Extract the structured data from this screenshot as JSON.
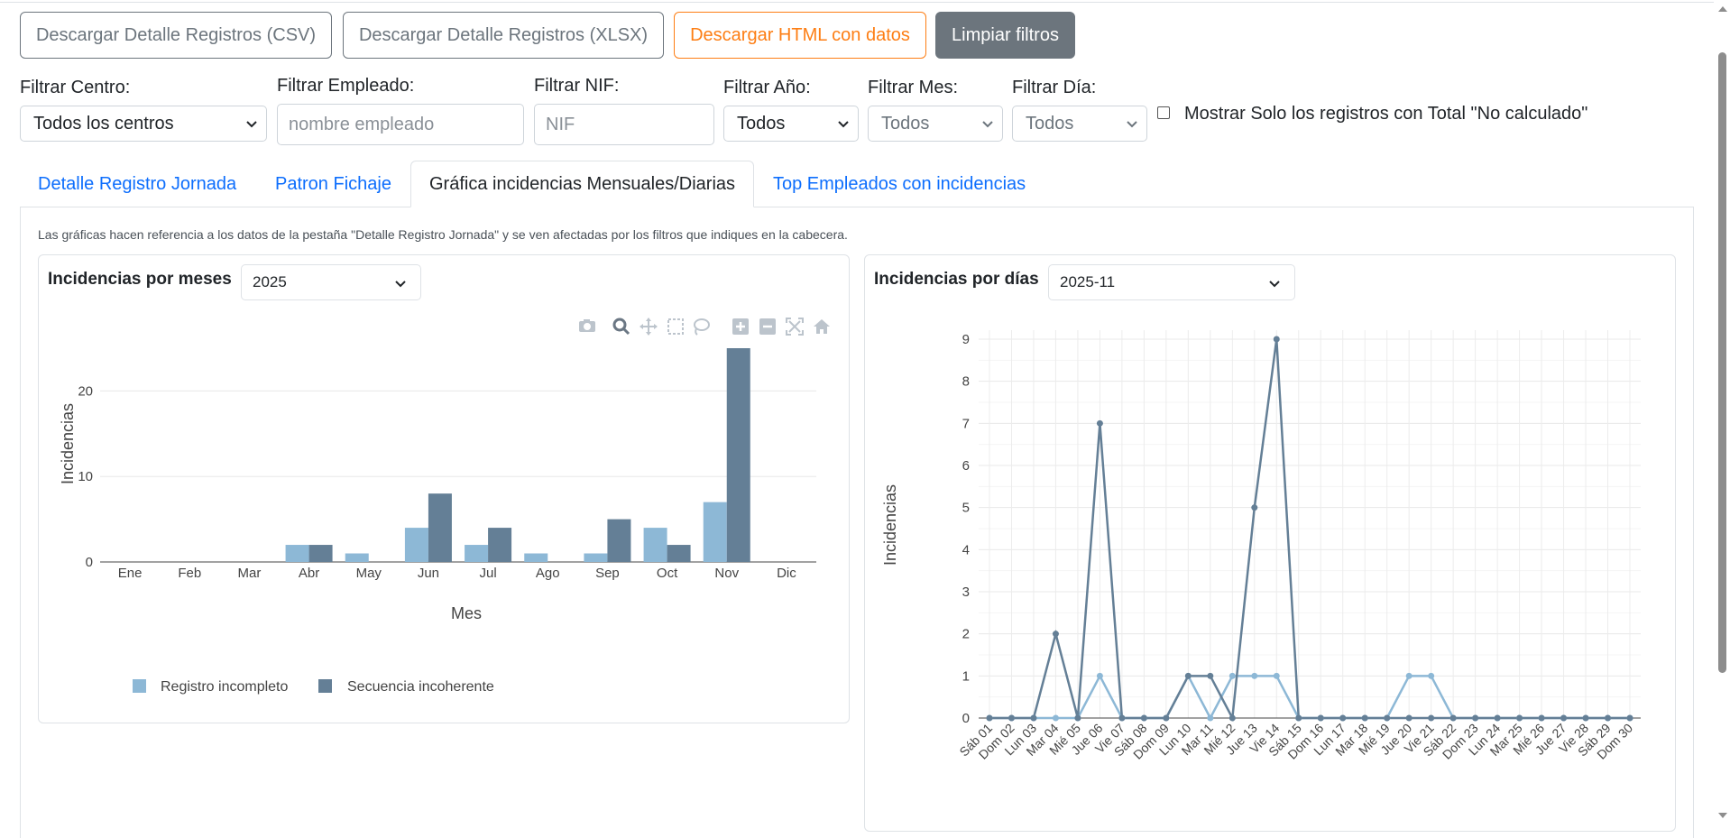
{
  "buttons": {
    "csv": "Descargar Detalle Registros (CSV)",
    "xlsx": "Descargar Detalle Registros (XLSX)",
    "html": "Descargar HTML con datos",
    "clear": "Limpiar filtros"
  },
  "filters": {
    "centro_label": "Filtrar Centro:",
    "centro_value": "Todos los centros",
    "empleado_label": "Filtrar Empleado:",
    "empleado_placeholder": "nombre empleado",
    "nif_label": "Filtrar NIF:",
    "nif_placeholder": "NIF",
    "anio_label": "Filtrar Año:",
    "anio_value": "Todos",
    "mes_label": "Filtrar Mes:",
    "mes_value": "Todos",
    "dia_label": "Filtrar Día:",
    "dia_value": "Todos",
    "checkbox_label": "Mostrar Solo los registros con Total \"No calculado\""
  },
  "tabs": [
    {
      "label": "Detalle Registro Jornada"
    },
    {
      "label": "Patron Fichaje"
    },
    {
      "label": "Gráfica incidencias Mensuales/Diarias"
    },
    {
      "label": "Top Empleados con incidencias"
    }
  ],
  "note": "Las gráficas hacen referencia a los datos de la pestaña \"Detalle Registro Jornada\" y se ven afectadas por los filtros que indiques en la cabecera.",
  "monthly_card": {
    "title": "Incidencias por meses",
    "selected": "2025"
  },
  "daily_card": {
    "title": "Incidencias por días",
    "selected": "2025-11"
  },
  "colors": {
    "registro": "#8db8d6",
    "secuencia": "#647f96"
  },
  "chart_data": [
    {
      "type": "bar",
      "xlabel": "Mes",
      "ylabel": "Incidencias",
      "ylim": [
        0,
        25
      ],
      "yticks": [
        0,
        10,
        20
      ],
      "categories": [
        "Ene",
        "Feb",
        "Mar",
        "Abr",
        "May",
        "Jun",
        "Jul",
        "Ago",
        "Sep",
        "Oct",
        "Nov",
        "Dic"
      ],
      "series": [
        {
          "name": "Registro incompleto",
          "values": [
            0,
            0,
            0,
            2,
            1,
            4,
            2,
            1,
            1,
            4,
            7,
            0
          ]
        },
        {
          "name": "Secuencia incoherente",
          "values": [
            0,
            0,
            0,
            2,
            0,
            8,
            4,
            0,
            5,
            2,
            25,
            0
          ]
        }
      ],
      "legend": "bottom"
    },
    {
      "type": "line",
      "ylabel": "Incidencias",
      "ylim": [
        0,
        9
      ],
      "yticks": [
        0,
        1,
        2,
        3,
        4,
        5,
        6,
        7,
        8,
        9
      ],
      "categories": [
        "Sáb 01",
        "Dom 02",
        "Lun 03",
        "Mar 04",
        "Mié 05",
        "Jue 06",
        "Vie 07",
        "Sáb 08",
        "Dom 09",
        "Lun 10",
        "Mar 11",
        "Mié 12",
        "Jue 13",
        "Vie 14",
        "Sáb 15",
        "Dom 16",
        "Lun 17",
        "Mar 18",
        "Mié 19",
        "Jue 20",
        "Vie 21",
        "Sáb 22",
        "Dom 23",
        "Lun 24",
        "Mar 25",
        "Mié 26",
        "Jue 27",
        "Vie 28",
        "Sáb 29",
        "Dom 30"
      ],
      "series": [
        {
          "name": "Registro incompleto",
          "values": [
            0,
            0,
            0,
            0,
            0,
            1,
            0,
            0,
            0,
            1,
            0,
            1,
            1,
            1,
            0,
            0,
            0,
            0,
            0,
            1,
            1,
            0,
            0,
            0,
            0,
            0,
            0,
            0,
            0,
            0
          ]
        },
        {
          "name": "Secuencia incoherente",
          "values": [
            0,
            0,
            0,
            2,
            0,
            7,
            0,
            0,
            0,
            1,
            1,
            0,
            5,
            9,
            0,
            0,
            0,
            0,
            0,
            0,
            0,
            0,
            0,
            0,
            0,
            0,
            0,
            0,
            0,
            0
          ]
        }
      ]
    }
  ]
}
